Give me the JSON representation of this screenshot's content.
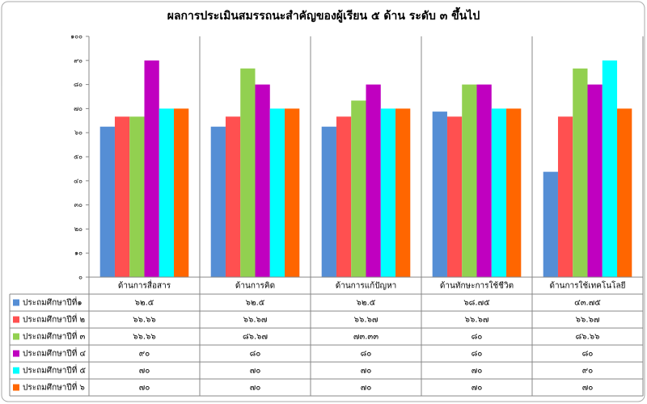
{
  "chart_data": {
    "type": "bar",
    "title": "ผลการประเมินสมรรถนะสำคัญของผู้เรียน ๕ ด้าน ระดับ ๓ ขึ้นไป",
    "categories": [
      "ด้านการสื่อสาร",
      "ด้านการคิด",
      "ด้านการแก้ปัญหา",
      "ด้านทักษะการใช้ชีวิต",
      "ด้านการใช้เทคโนโลยี"
    ],
    "series": [
      {
        "name": "ประถมศึกษาปีที่๑",
        "color": "#558ed5",
        "values": [
          62.5,
          62.5,
          62.5,
          68.75,
          43.75
        ],
        "value_labels": [
          "๖๒.๕",
          "๖๒.๕",
          "๖๒.๕",
          "๖๘.๗๕",
          "๔๓.๗๕"
        ]
      },
      {
        "name": "ประถมศึกษาปีที่ ๒",
        "color": "#ff5050",
        "values": [
          66.66,
          66.67,
          66.67,
          66.67,
          66.67
        ],
        "value_labels": [
          "๖๖.๖๖",
          "๖๖.๖๗",
          "๖๖.๖๗",
          "๖๖.๖๗",
          "๖๖.๖๗"
        ]
      },
      {
        "name": "ประถมศึกษาปีที่ ๓",
        "color": "#92d050",
        "values": [
          66.66,
          86.67,
          73.33,
          80,
          86.66
        ],
        "value_labels": [
          "๖๖.๖๖",
          "๘๖.๖๗",
          "๗๓.๓๓",
          "๘๐",
          "๘๖.๖๖"
        ]
      },
      {
        "name": "ประถมศึกษาปีที่ ๔",
        "color": "#c000c0",
        "values": [
          90,
          80,
          80,
          80,
          80
        ],
        "value_labels": [
          "๙๐",
          "๘๐",
          "๘๐",
          "๘๐",
          "๘๐"
        ]
      },
      {
        "name": "ประถมศึกษาปีที่ ๕",
        "color": "#00ffff",
        "values": [
          70,
          70,
          70,
          70,
          90
        ],
        "value_labels": [
          "๗๐",
          "๗๐",
          "๗๐",
          "๗๐",
          "๙๐"
        ]
      },
      {
        "name": "ประถมศึกษาปีที่ ๖",
        "color": "#ff6600",
        "values": [
          70,
          70,
          70,
          70,
          70
        ],
        "value_labels": [
          "๗๐",
          "๗๐",
          "๗๐",
          "๗๐",
          "๗๐"
        ]
      }
    ],
    "ylim": [
      0,
      100
    ],
    "yticks": [
      {
        "value": 0,
        "label": "๐"
      },
      {
        "value": 10,
        "label": "๑๐"
      },
      {
        "value": 20,
        "label": "๒๐"
      },
      {
        "value": 30,
        "label": "๓๐"
      },
      {
        "value": 40,
        "label": "๔๐"
      },
      {
        "value": 50,
        "label": "๕๐"
      },
      {
        "value": 60,
        "label": "๖๐"
      },
      {
        "value": 70,
        "label": "๗๐"
      },
      {
        "value": 80,
        "label": "๘๐"
      },
      {
        "value": 90,
        "label": "๙๐"
      },
      {
        "value": 100,
        "label": "๑๐๐"
      }
    ]
  }
}
